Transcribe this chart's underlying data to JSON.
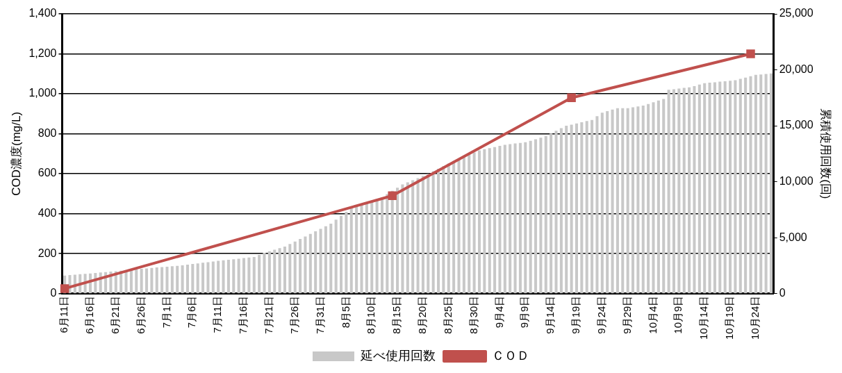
{
  "chart_data": {
    "type": "bar",
    "ylabel": "COD濃度(mg/L)",
    "y2label": "累積使用回数(回)",
    "categories": [
      "6月11日",
      null,
      null,
      null,
      null,
      "6月16日",
      null,
      null,
      null,
      null,
      "6月21日",
      null,
      null,
      null,
      null,
      "6月26日",
      null,
      null,
      null,
      null,
      "7月1日",
      null,
      null,
      null,
      null,
      "7月6日",
      null,
      null,
      null,
      null,
      "7月11日",
      null,
      null,
      null,
      null,
      "7月16日",
      null,
      null,
      null,
      null,
      "7月21日",
      null,
      null,
      null,
      null,
      "7月26日",
      null,
      null,
      null,
      null,
      "7月31日",
      null,
      null,
      null,
      null,
      "8月5日",
      null,
      null,
      null,
      null,
      "8月10日",
      null,
      null,
      null,
      null,
      "8月15日",
      null,
      null,
      null,
      null,
      "8月20日",
      null,
      null,
      null,
      null,
      "8月25日",
      null,
      null,
      null,
      null,
      "8月30日",
      null,
      null,
      null,
      null,
      "9月4日",
      null,
      null,
      null,
      null,
      "9月9日",
      null,
      null,
      null,
      null,
      "9月14日",
      null,
      null,
      null,
      null,
      "9月19日",
      null,
      null,
      null,
      null,
      "9月24日",
      null,
      null,
      null,
      null,
      "9月29日",
      null,
      null,
      null,
      null,
      "10月4日",
      null,
      null,
      null,
      null,
      "10月9日",
      null,
      null,
      null,
      null,
      "10月14日",
      null,
      null,
      null,
      null,
      "10月19日",
      null,
      null,
      null,
      null,
      "10月24日",
      null,
      null,
      null
    ],
    "series": [
      {
        "name": "延べ使用回数",
        "axis": "y2",
        "color": "#c8c8c8",
        "values": [
          1610,
          1650,
          1690,
          1730,
          1770,
          1800,
          1840,
          1880,
          1920,
          1960,
          2000,
          2040,
          2080,
          2130,
          2170,
          2210,
          2250,
          2290,
          2330,
          2370,
          2400,
          2440,
          2470,
          2530,
          2590,
          2640,
          2700,
          2760,
          2810,
          2870,
          2920,
          2970,
          3020,
          3070,
          3120,
          3170,
          3220,
          3270,
          3450,
          3640,
          3780,
          3920,
          4060,
          4200,
          4430,
          4650,
          4880,
          5100,
          5330,
          5560,
          5790,
          6020,
          6250,
          6600,
          6950,
          7300,
          7650,
          7810,
          7970,
          8130,
          8280,
          8440,
          8600,
          8890,
          9180,
          9460,
          9750,
          9940,
          10130,
          10320,
          10510,
          10700,
          10930,
          11160,
          11390,
          11620,
          11850,
          12040,
          12230,
          12420,
          12610,
          12800,
          12900,
          13000,
          13100,
          13200,
          13300,
          13360,
          13420,
          13470,
          13530,
          13660,
          13800,
          13930,
          14070,
          14310,
          14560,
          14780,
          15000,
          15100,
          15210,
          15310,
          15420,
          15520,
          15850,
          16170,
          16300,
          16440,
          16570,
          16570,
          16570,
          16650,
          16720,
          16800,
          16950,
          17100,
          17250,
          17400,
          18220,
          18270,
          18330,
          18380,
          18430,
          18550,
          18680,
          18800,
          18850,
          18890,
          18940,
          18980,
          19030,
          19070,
          19190,
          19310,
          19430,
          19550,
          19590,
          19630,
          19670
        ]
      },
      {
        "name": "ＣＯＤ",
        "type": "line",
        "color": "#c0504d",
        "marker": "square",
        "values": [
          25,
          null,
          null,
          null,
          null,
          null,
          null,
          null,
          null,
          null,
          null,
          null,
          null,
          null,
          null,
          null,
          null,
          null,
          null,
          null,
          null,
          null,
          null,
          null,
          null,
          null,
          null,
          null,
          null,
          null,
          null,
          null,
          null,
          null,
          null,
          null,
          null,
          null,
          null,
          null,
          null,
          null,
          null,
          null,
          null,
          null,
          null,
          null,
          null,
          null,
          null,
          null,
          null,
          null,
          null,
          null,
          null,
          null,
          null,
          null,
          null,
          null,
          null,
          null,
          490,
          null,
          null,
          null,
          null,
          null,
          null,
          null,
          null,
          null,
          null,
          null,
          null,
          null,
          null,
          null,
          null,
          null,
          null,
          null,
          null,
          null,
          null,
          null,
          null,
          null,
          null,
          null,
          null,
          null,
          null,
          null,
          null,
          null,
          null,
          980,
          null,
          null,
          null,
          null,
          null,
          null,
          null,
          null,
          null,
          null,
          null,
          null,
          null,
          null,
          null,
          null,
          null,
          null,
          null,
          null,
          null,
          null,
          null,
          null,
          null,
          null,
          null,
          null,
          null,
          null,
          null,
          null,
          null,
          null,
          1200,
          null,
          null,
          null,
          null
        ]
      }
    ],
    "ylim": [
      0,
      1400
    ],
    "yticks": [
      0,
      {
        "value": 200,
        "label": "200"
      },
      {
        "value": 400,
        "label": "400"
      },
      {
        "value": 600,
        "label": "600"
      },
      {
        "value": 800,
        "label": "800"
      },
      {
        "value": 1000,
        "label": "1,000"
      },
      {
        "value": 1200,
        "label": "1,200"
      },
      {
        "value": 1400,
        "label": "1,400"
      }
    ],
    "y2lim": [
      0,
      25000
    ],
    "y2ticks": [
      0,
      {
        "value": 5000,
        "label": "5,000"
      },
      {
        "value": 10000,
        "label": "10,000"
      },
      {
        "value": 15000,
        "label": "15,000"
      },
      {
        "value": 20000,
        "label": "20,000"
      },
      {
        "value": 25000,
        "label": "25,000"
      }
    ],
    "grid": "y",
    "legend": "bottom"
  }
}
